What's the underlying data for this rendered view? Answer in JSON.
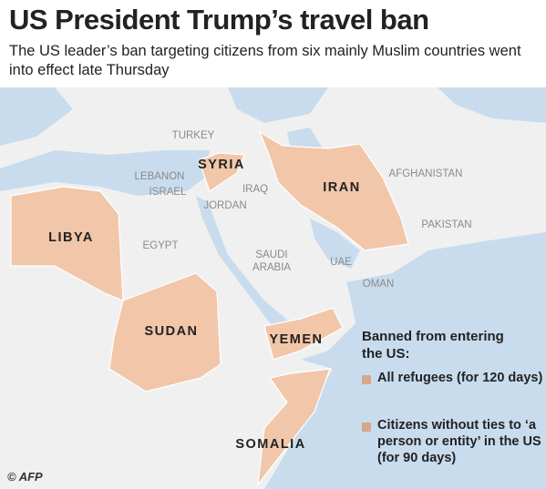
{
  "header": {
    "title": "US President Trump’s travel ban",
    "subtitle": "The US leader’s ban targeting citizens from six mainly Muslim countries went into effect late Thursday"
  },
  "map": {
    "banned_countries": [
      "SYRIA",
      "IRAN",
      "LIBYA",
      "SUDAN",
      "YEMEN",
      "SOMALIA"
    ],
    "other_countries": [
      "TURKEY",
      "LEBANON",
      "ISRAEL",
      "IRAQ",
      "JORDAN",
      "EGYPT",
      "SAUDI ARABIA",
      "UAE",
      "OMAN",
      "AFGHANISTAN",
      "PAKISTAN"
    ]
  },
  "legend": {
    "title": "Banned from entering the US:",
    "items": [
      "All refugees (for 120 days)",
      "Citizens without ties to ‘a person or entity’ in the US (for 90 days)"
    ]
  },
  "credit": "© AFP"
}
